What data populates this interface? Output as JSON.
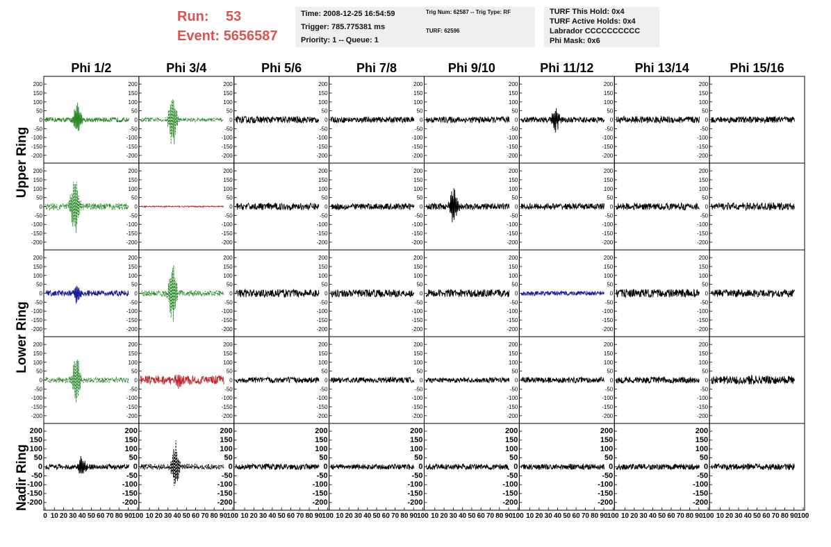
{
  "header": {
    "run_label": "Run:",
    "run_value": "53",
    "event_label": "Event:",
    "event_value": "5656587"
  },
  "info_time": {
    "line1": "Time: 2008-12-25 16:54:59",
    "line2": "Trigger: 785.775381 ms",
    "line3": "Priority: 1 -- Queue: 1"
  },
  "info_trig": {
    "line1": "Trig Num: 62587 -- Trig Type: RF",
    "line2": "TURF: 62596"
  },
  "info_turf": {
    "line1": "TURF This Hold: 0x4",
    "line2": "TURF Active Holds: 0x4",
    "line3": "Labrador CCCCCCCCCC",
    "line4": "Phi Mask: 0x6"
  },
  "ring_labels": {
    "upper": "Upper Ring",
    "lower": "Lower Ring",
    "nadir": "Nadir Ring"
  },
  "chart_data": {
    "type": "line",
    "columns": [
      "Phi 1/2",
      "Phi 3/4",
      "Phi 5/6",
      "Phi 7/8",
      "Phi 9/10",
      "Phi 11/12",
      "Phi 13/14",
      "Phi 15/16"
    ],
    "y_ticks": [
      200,
      150,
      100,
      50,
      0,
      -50,
      -100,
      -150,
      -200
    ],
    "x_ticks": [
      0,
      10,
      20,
      30,
      40,
      50,
      60,
      70,
      80,
      90,
      100
    ],
    "xlim": [
      0,
      100
    ],
    "ylim": [
      -220,
      220
    ],
    "colors": {
      "black": "#000000",
      "green": "#2a8a2a",
      "blue": "#1a1a9a",
      "red": "#c0262c"
    },
    "panels": [
      [
        {
          "color": "green",
          "dashed": false,
          "noise": 8,
          "burst_at": 35,
          "burst_amp": 110
        },
        {
          "color": "green",
          "dashed": true,
          "noise": 7,
          "burst_at": 35,
          "burst_amp": 170
        },
        {
          "color": "black",
          "dashed": false,
          "noise": 12,
          "burst_at": 0,
          "burst_amp": 0
        },
        {
          "color": "black",
          "dashed": false,
          "noise": 10,
          "burst_at": 0,
          "burst_amp": 0
        },
        {
          "color": "black",
          "dashed": false,
          "noise": 11,
          "burst_at": 0,
          "burst_amp": 0
        },
        {
          "color": "black",
          "dashed": false,
          "noise": 10,
          "burst_at": 38,
          "burst_amp": 80
        },
        {
          "color": "black",
          "dashed": false,
          "noise": 12,
          "burst_at": 0,
          "burst_amp": 0
        },
        {
          "color": "black",
          "dashed": false,
          "noise": 11,
          "burst_at": 0,
          "burst_amp": 0
        }
      ],
      [
        {
          "color": "green",
          "dashed": true,
          "noise": 12,
          "burst_at": 32,
          "burst_amp": 200
        },
        {
          "color": "red",
          "dashed": false,
          "noise": 2,
          "burst_at": 0,
          "burst_amp": 0
        },
        {
          "color": "black",
          "dashed": false,
          "noise": 12,
          "burst_at": 0,
          "burst_amp": 0
        },
        {
          "color": "black",
          "dashed": false,
          "noise": 11,
          "burst_at": 0,
          "burst_amp": 0
        },
        {
          "color": "black",
          "dashed": false,
          "noise": 11,
          "burst_at": 30,
          "burst_amp": 110
        },
        {
          "color": "black",
          "dashed": false,
          "noise": 11,
          "burst_at": 0,
          "burst_amp": 0
        },
        {
          "color": "black",
          "dashed": false,
          "noise": 12,
          "burst_at": 0,
          "burst_amp": 0
        },
        {
          "color": "black",
          "dashed": false,
          "noise": 13,
          "burst_at": 0,
          "burst_amp": 0
        }
      ],
      [
        {
          "color": "blue",
          "dashed": false,
          "noise": 10,
          "burst_at": 35,
          "burst_amp": 60
        },
        {
          "color": "green",
          "dashed": true,
          "noise": 10,
          "burst_at": 35,
          "burst_amp": 200
        },
        {
          "color": "black",
          "dashed": false,
          "noise": 14,
          "burst_at": 0,
          "burst_amp": 0
        },
        {
          "color": "black",
          "dashed": false,
          "noise": 13,
          "burst_at": 0,
          "burst_amp": 0
        },
        {
          "color": "black",
          "dashed": false,
          "noise": 13,
          "burst_at": 0,
          "burst_amp": 0
        },
        {
          "color": "blue",
          "dashed": false,
          "noise": 8,
          "burst_at": 0,
          "burst_amp": 0
        },
        {
          "color": "black",
          "dashed": false,
          "noise": 14,
          "burst_at": 0,
          "burst_amp": 0
        },
        {
          "color": "black",
          "dashed": false,
          "noise": 13,
          "burst_at": 0,
          "burst_amp": 0
        }
      ],
      [
        {
          "color": "green",
          "dashed": true,
          "noise": 10,
          "burst_at": 34,
          "burst_amp": 160
        },
        {
          "color": "red",
          "dashed": false,
          "noise": 16,
          "burst_at": 40,
          "burst_amp": 40
        },
        {
          "color": "black",
          "dashed": false,
          "noise": 10,
          "burst_at": 0,
          "burst_amp": 0
        },
        {
          "color": "black",
          "dashed": false,
          "noise": 10,
          "burst_at": 0,
          "burst_amp": 0
        },
        {
          "color": "black",
          "dashed": false,
          "noise": 9,
          "burst_at": 0,
          "burst_amp": 0
        },
        {
          "color": "black",
          "dashed": false,
          "noise": 10,
          "burst_at": 0,
          "burst_amp": 0
        },
        {
          "color": "black",
          "dashed": false,
          "noise": 11,
          "burst_at": 0,
          "burst_amp": 0
        },
        {
          "color": "black",
          "dashed": false,
          "noise": 14,
          "burst_at": 45,
          "burst_amp": 20
        }
      ],
      [
        {
          "color": "black",
          "dashed": false,
          "noise": 9,
          "burst_at": 40,
          "burst_amp": 60
        },
        {
          "color": "black",
          "dashed": true,
          "noise": 10,
          "burst_at": 38,
          "burst_amp": 150
        },
        {
          "color": "black",
          "dashed": false,
          "noise": 10,
          "burst_at": 0,
          "burst_amp": 0
        },
        {
          "color": "black",
          "dashed": false,
          "noise": 9,
          "burst_at": 0,
          "burst_amp": 0
        },
        {
          "color": "black",
          "dashed": false,
          "noise": 10,
          "burst_at": 0,
          "burst_amp": 0
        },
        {
          "color": "black",
          "dashed": false,
          "noise": 10,
          "burst_at": 0,
          "burst_amp": 0
        },
        {
          "color": "black",
          "dashed": false,
          "noise": 10,
          "burst_at": 0,
          "burst_amp": 0
        },
        {
          "color": "black",
          "dashed": false,
          "noise": 11,
          "burst_at": 0,
          "burst_amp": 0
        }
      ]
    ]
  }
}
